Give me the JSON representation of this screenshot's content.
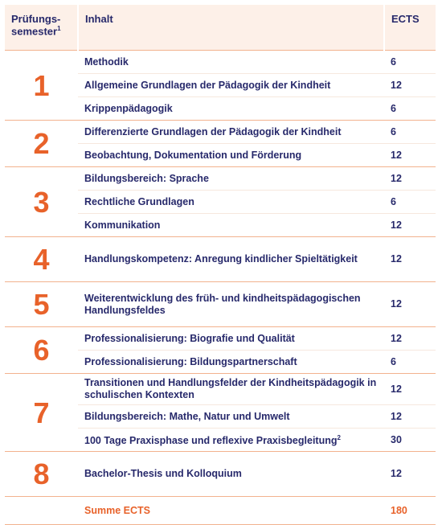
{
  "header": {
    "semester_lines": [
      "Prüfungs-",
      "semester"
    ],
    "semester_note": "1",
    "content": "Inhalt",
    "ects": "ECTS"
  },
  "groups": [
    {
      "semester": 1,
      "rows": [
        {
          "content": "Methodik",
          "ects": 6
        },
        {
          "content": "Allgemeine Grundlagen der Pädagogik der Kindheit",
          "ects": 12
        },
        {
          "content": "Krippenpädagogik",
          "ects": 6
        }
      ]
    },
    {
      "semester": 2,
      "rows": [
        {
          "content": "Differenzierte Grundlagen der Pädagogik der Kindheit",
          "ects": 6
        },
        {
          "content": "Beobachtung, Dokumentation und Förderung",
          "ects": 12
        }
      ]
    },
    {
      "semester": 3,
      "rows": [
        {
          "content": "Bildungsbereich: Sprache",
          "ects": 12
        },
        {
          "content": "Rechtliche Grundlagen",
          "ects": 6
        },
        {
          "content": "Kommunikation",
          "ects": 12
        }
      ]
    },
    {
      "semester": 4,
      "rows": [
        {
          "content": "Handlungskompetenz: Anregung kindlicher Spieltätigkeit",
          "ects": 12
        }
      ]
    },
    {
      "semester": 5,
      "rows": [
        {
          "content": "Weiterentwicklung des früh- und kindheitspädagogischen Handlungsfeldes",
          "ects": 12
        }
      ]
    },
    {
      "semester": 6,
      "rows": [
        {
          "content": "Professionalisierung: Biografie und Qualität",
          "ects": 12
        },
        {
          "content": "Professionalisierung: Bildungspartnerschaft",
          "ects": 6
        }
      ]
    },
    {
      "semester": 7,
      "rows": [
        {
          "content": "Transitionen und Handlungsfelder der Kindheitspädagogik in schulischen Kontexten",
          "ects": 12
        },
        {
          "content": "Bildungsbereich: Mathe, Natur und Umwelt",
          "ects": 12
        },
        {
          "content": "100 Tage Praxisphase und reflexive Praxisbegleitung",
          "note": "2",
          "ects": 30
        }
      ]
    },
    {
      "semester": 8,
      "rows": [
        {
          "content": "Bachelor-Thesis und Kolloquium",
          "ects": 12
        }
      ]
    }
  ],
  "total": {
    "label": "Summe ECTS",
    "ects": 180
  }
}
